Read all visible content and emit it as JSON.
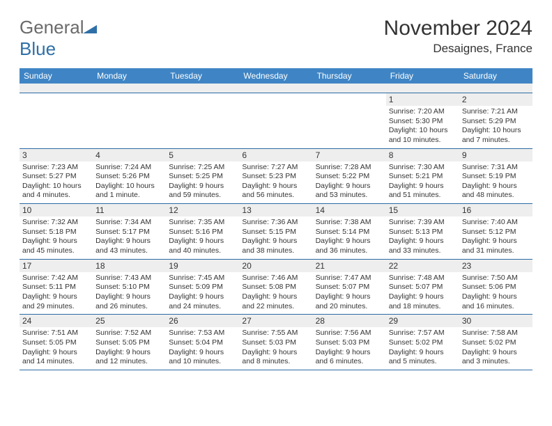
{
  "logo": {
    "text_gray": "General",
    "text_blue": "Blue"
  },
  "header": {
    "month_title": "November 2024",
    "location": "Desaignes, France"
  },
  "colors": {
    "header_bar": "#3f85c5",
    "stripe": "#eeeeee",
    "border": "#2b6aa4",
    "text": "#333333",
    "logo_gray": "#6a6a6a",
    "logo_blue": "#2f6fa8"
  },
  "weekdays": [
    "Sunday",
    "Monday",
    "Tuesday",
    "Wednesday",
    "Thursday",
    "Friday",
    "Saturday"
  ],
  "weeks": [
    [
      {
        "empty": true
      },
      {
        "empty": true
      },
      {
        "empty": true
      },
      {
        "empty": true
      },
      {
        "empty": true
      },
      {
        "num": "1",
        "sunrise": "Sunrise: 7:20 AM",
        "sunset": "Sunset: 5:30 PM",
        "daylight": "Daylight: 10 hours and 10 minutes."
      },
      {
        "num": "2",
        "sunrise": "Sunrise: 7:21 AM",
        "sunset": "Sunset: 5:29 PM",
        "daylight": "Daylight: 10 hours and 7 minutes."
      }
    ],
    [
      {
        "num": "3",
        "sunrise": "Sunrise: 7:23 AM",
        "sunset": "Sunset: 5:27 PM",
        "daylight": "Daylight: 10 hours and 4 minutes."
      },
      {
        "num": "4",
        "sunrise": "Sunrise: 7:24 AM",
        "sunset": "Sunset: 5:26 PM",
        "daylight": "Daylight: 10 hours and 1 minute."
      },
      {
        "num": "5",
        "sunrise": "Sunrise: 7:25 AM",
        "sunset": "Sunset: 5:25 PM",
        "daylight": "Daylight: 9 hours and 59 minutes."
      },
      {
        "num": "6",
        "sunrise": "Sunrise: 7:27 AM",
        "sunset": "Sunset: 5:23 PM",
        "daylight": "Daylight: 9 hours and 56 minutes."
      },
      {
        "num": "7",
        "sunrise": "Sunrise: 7:28 AM",
        "sunset": "Sunset: 5:22 PM",
        "daylight": "Daylight: 9 hours and 53 minutes."
      },
      {
        "num": "8",
        "sunrise": "Sunrise: 7:30 AM",
        "sunset": "Sunset: 5:21 PM",
        "daylight": "Daylight: 9 hours and 51 minutes."
      },
      {
        "num": "9",
        "sunrise": "Sunrise: 7:31 AM",
        "sunset": "Sunset: 5:19 PM",
        "daylight": "Daylight: 9 hours and 48 minutes."
      }
    ],
    [
      {
        "num": "10",
        "sunrise": "Sunrise: 7:32 AM",
        "sunset": "Sunset: 5:18 PM",
        "daylight": "Daylight: 9 hours and 45 minutes."
      },
      {
        "num": "11",
        "sunrise": "Sunrise: 7:34 AM",
        "sunset": "Sunset: 5:17 PM",
        "daylight": "Daylight: 9 hours and 43 minutes."
      },
      {
        "num": "12",
        "sunrise": "Sunrise: 7:35 AM",
        "sunset": "Sunset: 5:16 PM",
        "daylight": "Daylight: 9 hours and 40 minutes."
      },
      {
        "num": "13",
        "sunrise": "Sunrise: 7:36 AM",
        "sunset": "Sunset: 5:15 PM",
        "daylight": "Daylight: 9 hours and 38 minutes."
      },
      {
        "num": "14",
        "sunrise": "Sunrise: 7:38 AM",
        "sunset": "Sunset: 5:14 PM",
        "daylight": "Daylight: 9 hours and 36 minutes."
      },
      {
        "num": "15",
        "sunrise": "Sunrise: 7:39 AM",
        "sunset": "Sunset: 5:13 PM",
        "daylight": "Daylight: 9 hours and 33 minutes."
      },
      {
        "num": "16",
        "sunrise": "Sunrise: 7:40 AM",
        "sunset": "Sunset: 5:12 PM",
        "daylight": "Daylight: 9 hours and 31 minutes."
      }
    ],
    [
      {
        "num": "17",
        "sunrise": "Sunrise: 7:42 AM",
        "sunset": "Sunset: 5:11 PM",
        "daylight": "Daylight: 9 hours and 29 minutes."
      },
      {
        "num": "18",
        "sunrise": "Sunrise: 7:43 AM",
        "sunset": "Sunset: 5:10 PM",
        "daylight": "Daylight: 9 hours and 26 minutes."
      },
      {
        "num": "19",
        "sunrise": "Sunrise: 7:45 AM",
        "sunset": "Sunset: 5:09 PM",
        "daylight": "Daylight: 9 hours and 24 minutes."
      },
      {
        "num": "20",
        "sunrise": "Sunrise: 7:46 AM",
        "sunset": "Sunset: 5:08 PM",
        "daylight": "Daylight: 9 hours and 22 minutes."
      },
      {
        "num": "21",
        "sunrise": "Sunrise: 7:47 AM",
        "sunset": "Sunset: 5:07 PM",
        "daylight": "Daylight: 9 hours and 20 minutes."
      },
      {
        "num": "22",
        "sunrise": "Sunrise: 7:48 AM",
        "sunset": "Sunset: 5:07 PM",
        "daylight": "Daylight: 9 hours and 18 minutes."
      },
      {
        "num": "23",
        "sunrise": "Sunrise: 7:50 AM",
        "sunset": "Sunset: 5:06 PM",
        "daylight": "Daylight: 9 hours and 16 minutes."
      }
    ],
    [
      {
        "num": "24",
        "sunrise": "Sunrise: 7:51 AM",
        "sunset": "Sunset: 5:05 PM",
        "daylight": "Daylight: 9 hours and 14 minutes."
      },
      {
        "num": "25",
        "sunrise": "Sunrise: 7:52 AM",
        "sunset": "Sunset: 5:05 PM",
        "daylight": "Daylight: 9 hours and 12 minutes."
      },
      {
        "num": "26",
        "sunrise": "Sunrise: 7:53 AM",
        "sunset": "Sunset: 5:04 PM",
        "daylight": "Daylight: 9 hours and 10 minutes."
      },
      {
        "num": "27",
        "sunrise": "Sunrise: 7:55 AM",
        "sunset": "Sunset: 5:03 PM",
        "daylight": "Daylight: 9 hours and 8 minutes."
      },
      {
        "num": "28",
        "sunrise": "Sunrise: 7:56 AM",
        "sunset": "Sunset: 5:03 PM",
        "daylight": "Daylight: 9 hours and 6 minutes."
      },
      {
        "num": "29",
        "sunrise": "Sunrise: 7:57 AM",
        "sunset": "Sunset: 5:02 PM",
        "daylight": "Daylight: 9 hours and 5 minutes."
      },
      {
        "num": "30",
        "sunrise": "Sunrise: 7:58 AM",
        "sunset": "Sunset: 5:02 PM",
        "daylight": "Daylight: 9 hours and 3 minutes."
      }
    ]
  ]
}
